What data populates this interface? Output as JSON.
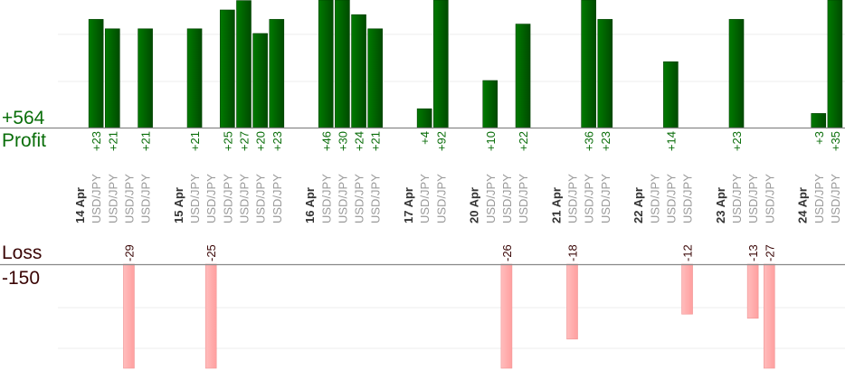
{
  "chart_data": {
    "type": "bar",
    "profit_total": "+564",
    "profit_label": "Profit",
    "loss_label": "Loss",
    "loss_total": "-150",
    "colors": {
      "profit": "#006600",
      "loss": "#ffb0b0",
      "profit_text": "#0a6e0a",
      "loss_text": "#3a0606"
    },
    "grid": true,
    "groups": [
      {
        "date": "14 Apr",
        "trades": [
          {
            "symbol": "USD/JPY",
            "value": 23
          },
          {
            "symbol": "USD/JPY",
            "value": 21
          },
          {
            "symbol": "USD/JPY",
            "value": -29
          },
          {
            "symbol": "USD/JPY",
            "value": 21
          }
        ]
      },
      {
        "date": "15 Apr",
        "trades": [
          {
            "symbol": "USD/JPY",
            "value": 21
          },
          {
            "symbol": "USD/JPY",
            "value": -25
          },
          {
            "symbol": "USD/JPY",
            "value": 25
          },
          {
            "symbol": "USD/JPY",
            "value": 27
          },
          {
            "symbol": "USD/JPY",
            "value": 20
          },
          {
            "symbol": "USD/JPY",
            "value": 23
          }
        ]
      },
      {
        "date": "16 Apr",
        "trades": [
          {
            "symbol": "USD/JPY",
            "value": 46
          },
          {
            "symbol": "USD/JPY",
            "value": 30
          },
          {
            "symbol": "USD/JPY",
            "value": 24
          },
          {
            "symbol": "USD/JPY",
            "value": 21
          }
        ]
      },
      {
        "date": "17 Apr",
        "trades": [
          {
            "symbol": "USD/JPY",
            "value": 4
          },
          {
            "symbol": "USD/JPY",
            "value": 92
          }
        ]
      },
      {
        "date": "20 Apr",
        "trades": [
          {
            "symbol": "USD/JPY",
            "value": 10
          },
          {
            "symbol": "USD/JPY",
            "value": -26
          },
          {
            "symbol": "USD/JPY",
            "value": 22
          }
        ]
      },
      {
        "date": "21 Apr",
        "trades": [
          {
            "symbol": "USD/JPY",
            "value": -18
          },
          {
            "symbol": "USD/JPY",
            "value": 36
          },
          {
            "symbol": "USD/JPY",
            "value": 23
          }
        ]
      },
      {
        "date": "22 Apr",
        "trades": [
          {
            "symbol": "USD/JPY",
            "value": null
          },
          {
            "symbol": "USD/JPY",
            "value": 14
          },
          {
            "symbol": "USD/JPY",
            "value": -12
          }
        ]
      },
      {
        "date": "23 Apr",
        "trades": [
          {
            "symbol": "USD/JPY",
            "value": 23
          },
          {
            "symbol": "USD/JPY",
            "value": -13
          },
          {
            "symbol": "USD/JPY",
            "value": -27
          }
        ]
      },
      {
        "date": "24 Apr",
        "trades": [
          {
            "symbol": "USD/JPY",
            "value": 3
          },
          {
            "symbol": "USD/JPY",
            "value": 35
          }
        ]
      }
    ]
  }
}
